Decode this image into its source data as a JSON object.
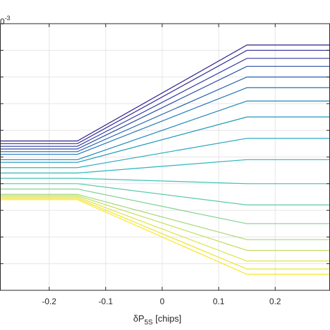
{
  "chart_data": {
    "type": "line",
    "xlabel_main": "δP",
    "xlabel_sub": "5S",
    "xlabel_unit": " [chips]",
    "exponent_base": "0",
    "exponent_power": "-3",
    "xlim": [
      -0.287,
      0.297
    ],
    "ylim": [
      0,
      1
    ],
    "x_ticks": [
      -0.2,
      -0.1,
      0,
      0.1,
      0.2
    ],
    "x_tick_labels": [
      "-0.2",
      "-0.1",
      "0",
      "0.1",
      "0.2"
    ],
    "y_gridlines": [
      0.9,
      0.8,
      0.7,
      0.6,
      0.5,
      0.4,
      0.3,
      0.2,
      0.1
    ],
    "grid": true,
    "breakpoints_x": [
      -0.15,
      0.15
    ],
    "series": [
      {
        "color": "#2c1f8a",
        "values": [
          [
            -0.287,
            0.56
          ],
          [
            -0.15,
            0.56
          ],
          [
            0.15,
            0.92
          ],
          [
            0.297,
            0.92
          ]
        ]
      },
      {
        "color": "#302a94",
        "values": [
          [
            -0.287,
            0.55
          ],
          [
            -0.15,
            0.55
          ],
          [
            0.15,
            0.9
          ],
          [
            0.297,
            0.9
          ]
        ]
      },
      {
        "color": "#2f3aa0",
        "values": [
          [
            -0.287,
            0.54
          ],
          [
            -0.15,
            0.54
          ],
          [
            0.15,
            0.87
          ],
          [
            0.297,
            0.87
          ]
        ]
      },
      {
        "color": "#2a4ca8",
        "values": [
          [
            -0.287,
            0.53
          ],
          [
            -0.15,
            0.53
          ],
          [
            0.15,
            0.84
          ],
          [
            0.297,
            0.84
          ]
        ]
      },
      {
        "color": "#2560b0",
        "values": [
          [
            -0.287,
            0.52
          ],
          [
            -0.15,
            0.52
          ],
          [
            0.15,
            0.8
          ],
          [
            0.297,
            0.8
          ]
        ]
      },
      {
        "color": "#1d74b6",
        "values": [
          [
            -0.287,
            0.51
          ],
          [
            -0.15,
            0.51
          ],
          [
            0.15,
            0.76
          ],
          [
            0.297,
            0.76
          ]
        ]
      },
      {
        "color": "#1a86ba",
        "values": [
          [
            -0.287,
            0.49
          ],
          [
            -0.15,
            0.49
          ],
          [
            0.15,
            0.71
          ],
          [
            0.297,
            0.71
          ]
        ]
      },
      {
        "color": "#1a97bd",
        "values": [
          [
            -0.287,
            0.48
          ],
          [
            -0.15,
            0.48
          ],
          [
            0.15,
            0.65
          ],
          [
            0.297,
            0.65
          ]
        ]
      },
      {
        "color": "#1fa6bf",
        "values": [
          [
            -0.287,
            0.46
          ],
          [
            -0.15,
            0.46
          ],
          [
            0.15,
            0.57
          ],
          [
            0.297,
            0.57
          ]
        ]
      },
      {
        "color": "#2ab4bd",
        "values": [
          [
            -0.287,
            0.44
          ],
          [
            -0.15,
            0.44
          ],
          [
            0.15,
            0.49
          ],
          [
            0.297,
            0.49
          ]
        ]
      },
      {
        "color": "#3fc0b6",
        "values": [
          [
            -0.287,
            0.42
          ],
          [
            -0.15,
            0.42
          ],
          [
            0.15,
            0.4
          ],
          [
            0.297,
            0.4
          ]
        ]
      },
      {
        "color": "#5ccaa6",
        "values": [
          [
            -0.287,
            0.4
          ],
          [
            -0.15,
            0.4
          ],
          [
            0.15,
            0.32
          ],
          [
            0.297,
            0.32
          ]
        ]
      },
      {
        "color": "#7fd290",
        "values": [
          [
            -0.287,
            0.38
          ],
          [
            -0.15,
            0.38
          ],
          [
            0.15,
            0.25
          ],
          [
            0.297,
            0.25
          ]
        ]
      },
      {
        "color": "#a3d876",
        "values": [
          [
            -0.287,
            0.36
          ],
          [
            -0.15,
            0.36
          ],
          [
            0.15,
            0.19
          ],
          [
            0.297,
            0.19
          ]
        ]
      },
      {
        "color": "#c4dd5c",
        "values": [
          [
            -0.287,
            0.355
          ],
          [
            -0.15,
            0.355
          ],
          [
            0.15,
            0.15
          ],
          [
            0.297,
            0.15
          ]
        ]
      },
      {
        "color": "#dde245",
        "values": [
          [
            -0.287,
            0.35
          ],
          [
            -0.15,
            0.35
          ],
          [
            0.15,
            0.11
          ],
          [
            0.297,
            0.11
          ]
        ]
      },
      {
        "color": "#efe428",
        "values": [
          [
            -0.287,
            0.345
          ],
          [
            -0.15,
            0.345
          ],
          [
            0.15,
            0.08
          ],
          [
            0.297,
            0.08
          ]
        ]
      },
      {
        "color": "#f9e721",
        "values": [
          [
            -0.287,
            0.34
          ],
          [
            -0.15,
            0.34
          ],
          [
            0.15,
            0.06
          ],
          [
            0.297,
            0.06
          ]
        ]
      }
    ]
  }
}
